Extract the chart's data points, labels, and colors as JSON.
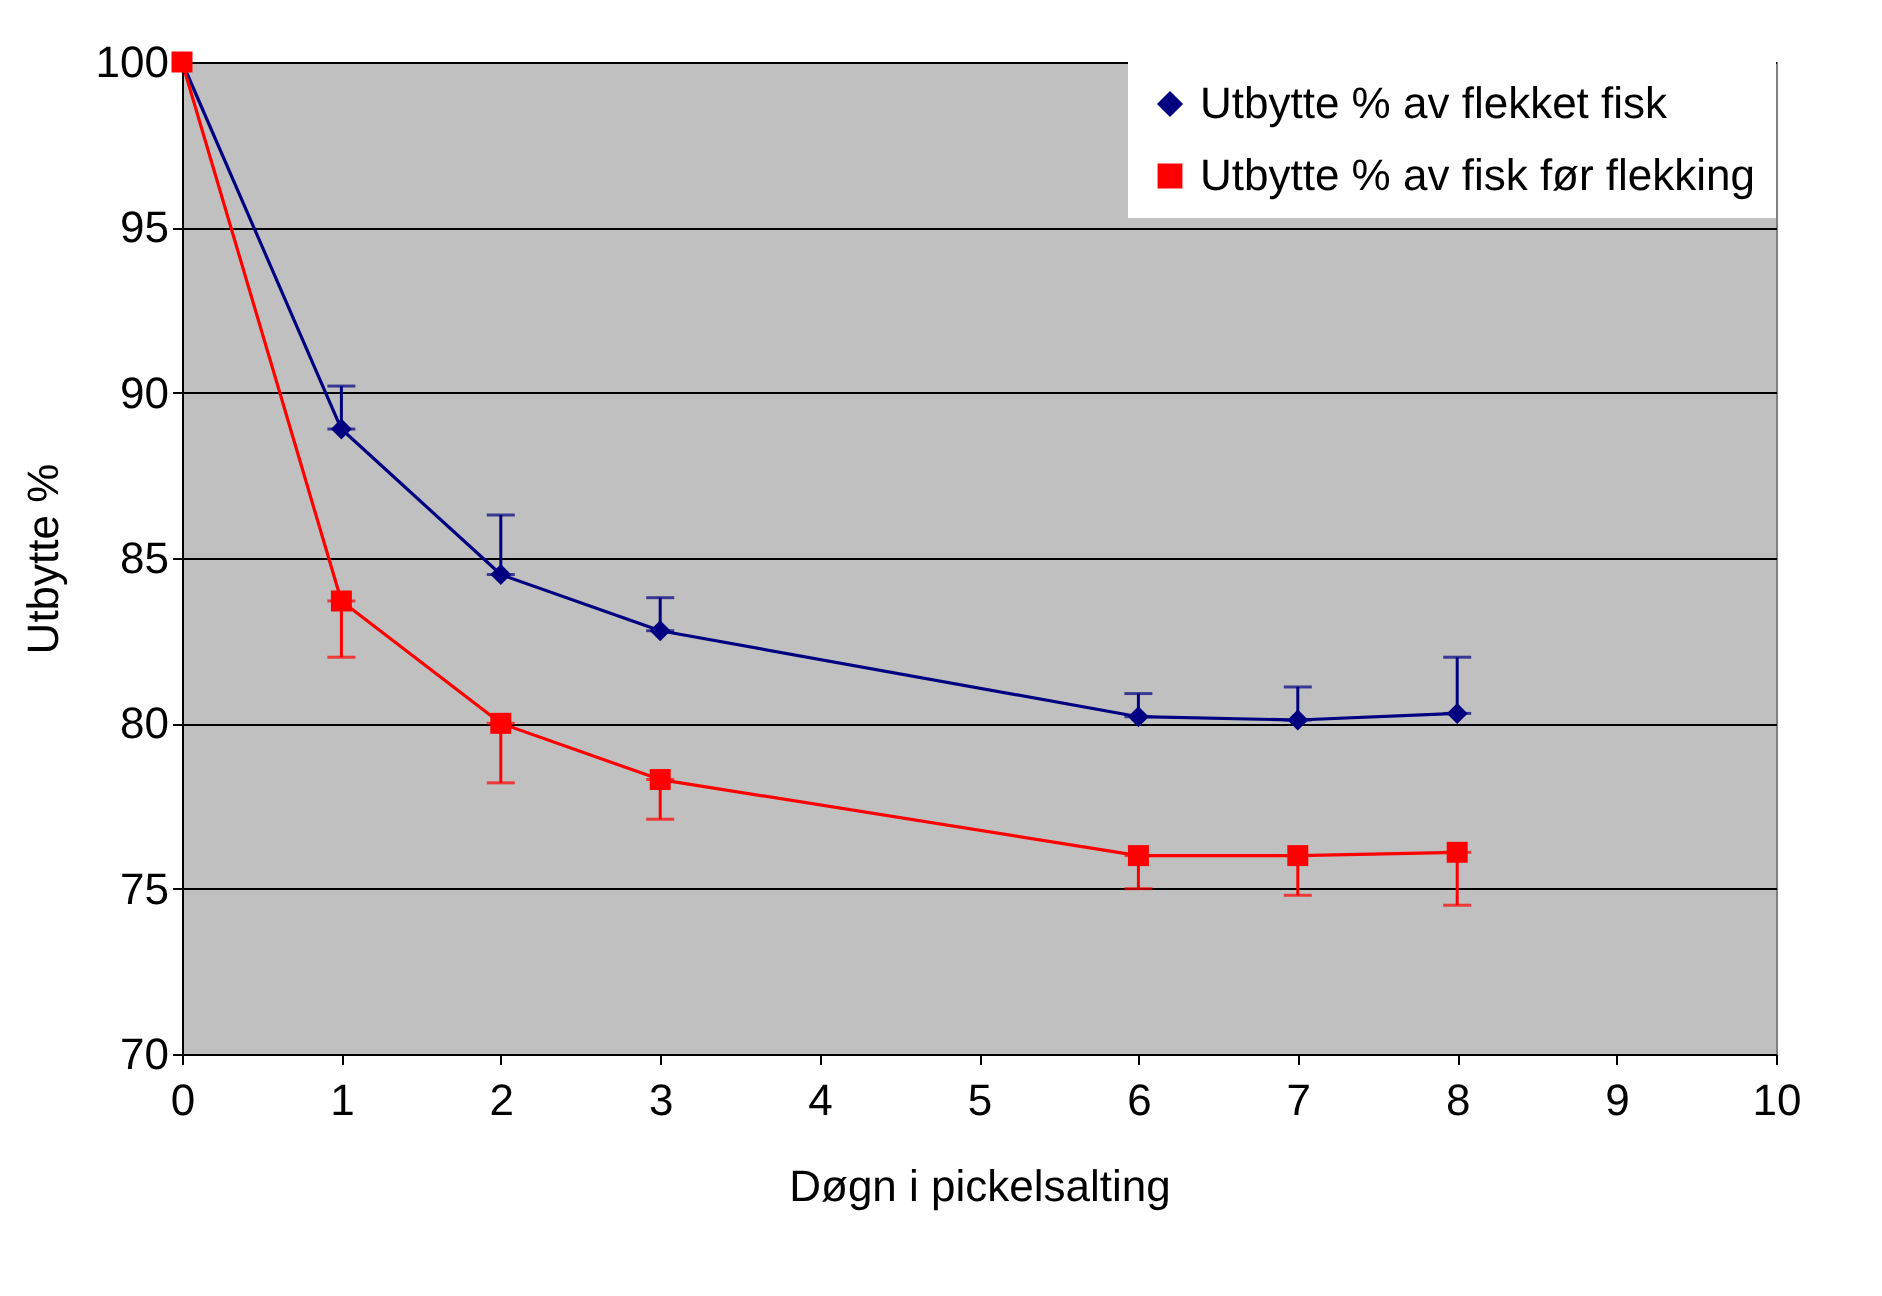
{
  "chart_data": {
    "type": "line",
    "xlabel": "Døgn i pickelsalting",
    "ylabel": "Utbytte %",
    "x": [
      0,
      1,
      2,
      3,
      6,
      7,
      8
    ],
    "series": [
      {
        "name": "Utbytte % av flekket fisk",
        "color": "#000080",
        "marker": "diamond",
        "values": [
          100,
          88.9,
          84.5,
          82.8,
          80.2,
          80.1,
          80.3
        ],
        "errors": [
          null,
          [
            88.9,
            90.2
          ],
          [
            84.5,
            86.3
          ],
          [
            82.8,
            83.8
          ],
          [
            80.2,
            80.9
          ],
          [
            80.1,
            81.1
          ],
          [
            80.3,
            82.0
          ]
        ]
      },
      {
        "name": "Utbytte % av fisk før flekking",
        "color": "#ff0000",
        "marker": "square",
        "values": [
          100,
          83.7,
          80.0,
          78.3,
          76.0,
          76.0,
          76.1
        ],
        "errors": [
          null,
          [
            82.0,
            83.7
          ],
          [
            78.2,
            80.0
          ],
          [
            77.1,
            78.3
          ],
          [
            75.0,
            76.0
          ],
          [
            74.8,
            76.0
          ],
          [
            74.5,
            76.1
          ]
        ]
      }
    ],
    "xlim": [
      0,
      10
    ],
    "xticks": [
      0,
      1,
      2,
      3,
      4,
      5,
      6,
      7,
      8,
      9,
      10
    ],
    "ylim": [
      70,
      100
    ],
    "yticks": [
      70,
      75,
      80,
      85,
      90,
      95,
      100
    ],
    "grid": "y",
    "legend": "top right",
    "line_style": "solid"
  }
}
